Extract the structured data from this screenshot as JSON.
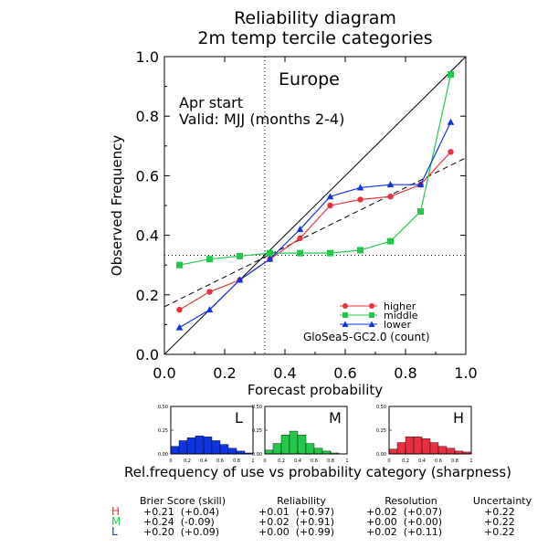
{
  "title_line1": "Reliability diagram",
  "title_line2": "2m temp tercile categories",
  "chart_data": {
    "type": "line",
    "region": "Europe",
    "start_label": "Apr start",
    "valid_label": "Valid: MJJ (months 2-4)",
    "model_label": "GloSea5-GC2.0 (count)",
    "xlabel": "Forecast probability",
    "ylabel": "Observed Frequency",
    "xlim": [
      0,
      1
    ],
    "ylim": [
      0,
      1
    ],
    "ticks": [
      "0.0",
      "0.2",
      "0.4",
      "0.6",
      "0.8",
      "1.0"
    ],
    "climatology": 0.333,
    "x": [
      0.05,
      0.15,
      0.25,
      0.35,
      0.45,
      0.55,
      0.65,
      0.75,
      0.85,
      0.95
    ],
    "series": [
      {
        "name": "higher",
        "color": "#e8303e",
        "marker": "circle",
        "values": [
          0.15,
          0.21,
          0.25,
          0.32,
          0.39,
          0.5,
          0.52,
          0.53,
          0.57,
          0.68
        ]
      },
      {
        "name": "middle",
        "color": "#22c84a",
        "marker": "square",
        "values": [
          0.3,
          0.32,
          0.33,
          0.34,
          0.34,
          0.34,
          0.35,
          0.38,
          0.48,
          0.94
        ]
      },
      {
        "name": "lower",
        "color": "#1034e0",
        "marker": "triangle",
        "values": [
          0.09,
          0.15,
          0.25,
          0.32,
          0.42,
          0.53,
          0.56,
          0.57,
          0.57,
          0.78
        ]
      }
    ],
    "regression_line": [
      [
        0.0,
        0.16
      ],
      [
        1.0,
        0.66
      ]
    ],
    "legend_position": "bottom-right"
  },
  "sharpness": {
    "caption": "Rel.frequency of use vs probability category (sharpness)",
    "yticks": [
      "0.50",
      "0.25",
      "0.00"
    ],
    "xticks": [
      "0",
      "0.2",
      "0.4",
      "0.6",
      "0.8",
      "1"
    ],
    "panels": [
      {
        "label": "L",
        "color": "#1034e0",
        "values": [
          0.08,
          0.14,
          0.17,
          0.19,
          0.18,
          0.14,
          0.1,
          0.06,
          0.03,
          0.01
        ]
      },
      {
        "label": "M",
        "color": "#22c84a",
        "values": [
          0.04,
          0.11,
          0.2,
          0.24,
          0.2,
          0.11,
          0.06,
          0.03,
          0.01,
          0.0
        ]
      },
      {
        "label": "H",
        "color": "#e8303e",
        "values": [
          0.05,
          0.12,
          0.18,
          0.18,
          0.16,
          0.12,
          0.08,
          0.06,
          0.03,
          0.02
        ]
      }
    ]
  },
  "scores": {
    "headers": [
      "Brier Score (skill)",
      "Reliability",
      "Resolution",
      "Uncertainty"
    ],
    "rows": [
      {
        "label": "H",
        "color": "#e8303e",
        "cells": [
          "+0.21  (+0.04)",
          "+0.01  (+0.97)",
          "+0.02  (+0.07)",
          "+0.22"
        ]
      },
      {
        "label": "M",
        "color": "#22c84a",
        "cells": [
          "+0.24  (-0.09)",
          "+0.02  (+0.91)",
          "+0.00  (+0.00)",
          "+0.22"
        ]
      },
      {
        "label": "L",
        "color": "#1034e0",
        "cells": [
          "+0.20  (+0.09)",
          "+0.00  (+0.99)",
          "+0.02  (+0.11)",
          "+0.22"
        ]
      }
    ]
  }
}
